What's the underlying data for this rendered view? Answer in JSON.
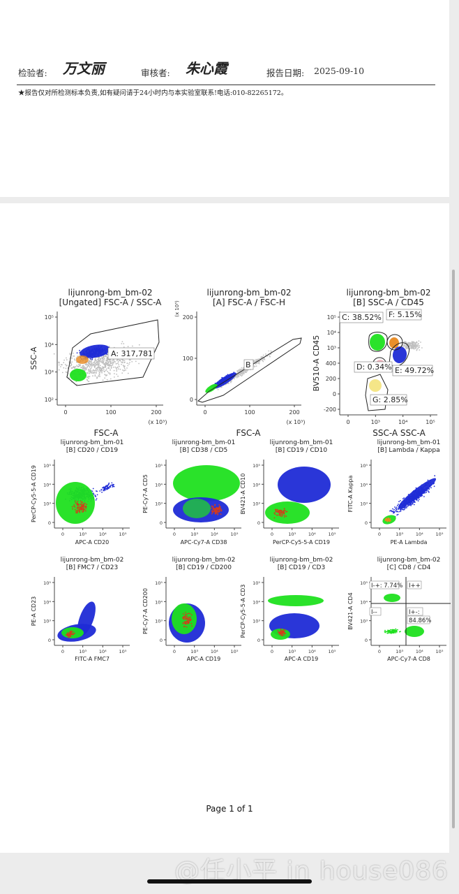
{
  "header": {
    "inspector_label": "检验者:",
    "inspector_signature": "万文丽",
    "reviewer_label": "审核者:",
    "reviewer_signature": "朱心霞",
    "report_date_label": "报告日期:",
    "report_date": "2025-09-10",
    "note": "★报告仅对所检测标本负责,如有疑问请于24小时内与本实验室联系!电话:010-82265172。"
  },
  "footer": {
    "page": "Page 1 of 1"
  },
  "watermark": "@任小平 in house086",
  "colors": {
    "blue": "#1f2bd6",
    "green": "#1fe01f",
    "red": "#d63a1a",
    "orange": "#e8891f",
    "pink": "#f0b3bd",
    "yellow": "#f2e06a"
  },
  "plots": [
    {
      "sample": "lijunrong-bm_bm-02",
      "gate": "[Ungated] FSC-A / SSC-A",
      "xlabel": "FSC-A",
      "ylabel": "SSC-A",
      "xunit": "(x 10³)",
      "xticks": [
        "0",
        "100",
        "200"
      ],
      "yticks": [
        "10⁵",
        "10⁴",
        "10³",
        "10²"
      ],
      "gates": [
        {
          "label": "A: 317,781"
        }
      ]
    },
    {
      "sample": "lijunrong-bm_bm-02",
      "gate": "[A] FSC-A / FSC-H",
      "xlabel": "FSC-A",
      "ylabel": "",
      "xunit": "(x 10³)",
      "yunit": "(x 10³)",
      "xticks": [
        "0",
        "100",
        "200"
      ],
      "yticks": [
        "200",
        "100",
        "0"
      ],
      "gates": [
        {
          "label": "B"
        }
      ]
    },
    {
      "sample": "lijunrong-bm_bm-02",
      "gate": "[B] SSC-A / CD45",
      "xlabel": "SSC-A SSC-A",
      "ylabel": "BV510-A CD45",
      "xticks": [
        "0",
        "10³",
        "10⁴",
        "10⁵"
      ],
      "yticks": [
        "10⁵",
        "10⁴",
        "10³",
        "400",
        "200",
        "0",
        "-200"
      ],
      "gates": [
        {
          "label": "C: 38.52%"
        },
        {
          "label": "F: 5.15%"
        },
        {
          "label": "D: 0.34%"
        },
        {
          "label": "E: 49.72%"
        },
        {
          "label": "G: 2.85%"
        }
      ]
    },
    {
      "sample": "lijunrong-bm_bm-01",
      "gate": "[B] CD20 / CD19",
      "xlabel": "APC-A CD20",
      "ylabel": "PerCP-Cy5-5-A CD19",
      "xticks": [
        "0",
        "10³",
        "10⁴",
        "10⁵"
      ],
      "yticks": [
        "10⁵",
        "10⁴",
        "10³",
        "0"
      ]
    },
    {
      "sample": "lijunrong-bm_bm-01",
      "gate": "[B] CD38 / CD5",
      "xlabel": "APC-Cy7-A CD38",
      "ylabel": "PE-Cy7-A CD5",
      "xticks": [
        "0",
        "10³",
        "10⁴",
        "10⁵"
      ],
      "yticks": [
        "10⁵",
        "10⁴",
        "10³",
        "0"
      ]
    },
    {
      "sample": "lijunrong-bm_bm-01",
      "gate": "[B] CD19 / CD10",
      "xlabel": "PerCP-Cy5-5-A CD19",
      "ylabel": "BV421-A CD10",
      "xticks": [
        "0",
        "10³",
        "10⁴",
        "10⁵"
      ],
      "yticks": [
        "10⁵",
        "10⁴",
        "10³",
        "0"
      ]
    },
    {
      "sample": "lijunrong-bm_bm-01",
      "gate": "[B] Lambda / Kappa",
      "xlabel": "PE-A Lambda",
      "ylabel": "FITC-A Kappa",
      "xticks": [
        "0",
        "10³",
        "10⁴",
        "10⁵"
      ],
      "yticks": [
        "10⁵",
        "10⁴",
        "10³",
        "0"
      ]
    },
    {
      "sample": "lijunrong-bm_bm-02",
      "gate": "[B] FMC7 / CD23",
      "xlabel": "FITC-A FMC7",
      "ylabel": "PE-A CD23",
      "xticks": [
        "0",
        "10³",
        "10⁴",
        "10⁵"
      ],
      "yticks": [
        "10⁵",
        "10⁴",
        "10³",
        "0"
      ]
    },
    {
      "sample": "lijunrong-bm_bm-02",
      "gate": "[B] CD19 / CD200",
      "xlabel": "APC-A CD19",
      "ylabel": "PE-Cy7-A CD200",
      "xticks": [
        "0",
        "10³",
        "10⁴",
        "10⁵"
      ],
      "yticks": [
        "10⁵",
        "10⁴",
        "10³",
        "0"
      ]
    },
    {
      "sample": "lijunrong-bm_bm-02",
      "gate": "[B] CD19 / CD3",
      "xlabel": "APC-A CD19",
      "ylabel": "PerCP-Cy5-5-A CD3",
      "xticks": [
        "0",
        "10³",
        "10⁴",
        "10⁵"
      ],
      "yticks": [
        "10⁵",
        "10⁴",
        "10³",
        "0"
      ]
    },
    {
      "sample": "lijunrong-bm_bm-02",
      "gate": "[C] CD8 / CD4",
      "xlabel": "APC-Cy7-A CD8",
      "ylabel": "BV421-A CD4",
      "xticks": [
        "0",
        "10³",
        "10⁴",
        "10⁵"
      ],
      "yticks": [
        "10⁵",
        "10⁴",
        "10³",
        "0"
      ],
      "quadrants": [
        {
          "label": "I-+: 7.74%"
        },
        {
          "label": "I++"
        },
        {
          "label": "I--"
        },
        {
          "label": "I+-:"
        },
        {
          "label": "84.86%"
        }
      ]
    }
  ],
  "row_labels": [
    "FSC-A",
    "FSC-A",
    "SSC-A SSC-A"
  ]
}
